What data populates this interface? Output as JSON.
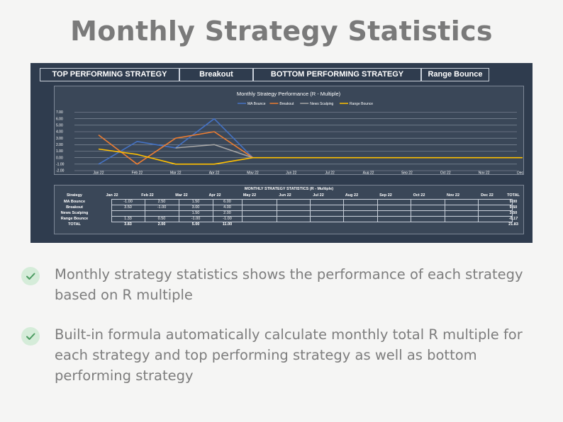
{
  "page_title": "Monthly Strategy Statistics",
  "topbar": {
    "top_label": "TOP PERFORMING STRATEGY",
    "top_value": "Breakout",
    "bottom_label": "BOTTOM PERFORMING STRATEGY",
    "bottom_value": "Range Bounce"
  },
  "bullets": [
    {
      "text": "Monthly strategy statistics shows the performance of each strategy based on R multiple"
    },
    {
      "text": "Built-in formula automatically calculate monthly total R multiple for each strategy and top performing strategy as well as bottom performing strategy"
    }
  ],
  "table": {
    "title": "MONTHLY STRATEGY STATISTICS (R - Multiple)",
    "headers": [
      "Strategy",
      "Jan 22",
      "Feb 22",
      "Mar 22",
      "Apr 22",
      "May 22",
      "Jun 22",
      "Jul 22",
      "Aug 22",
      "Sep 22",
      "Oct 22",
      "Nov 22",
      "Dec 22",
      "TOTAL"
    ],
    "rows": [
      {
        "name": "MA Bounce",
        "cells": [
          "-1.00",
          "2.50",
          "1.50",
          "6.00",
          "",
          "",
          "",
          "",
          "",
          "",
          "",
          ""
        ],
        "total": "9.00"
      },
      {
        "name": "Breakout",
        "cells": [
          "3.50",
          "-1.00",
          "3.00",
          "4.00",
          "",
          "",
          "",
          "",
          "",
          "",
          "",
          ""
        ],
        "total": "9.50"
      },
      {
        "name": "News Scalping",
        "cells": [
          "",
          "",
          "1.50",
          "2.00",
          "",
          "",
          "",
          "",
          "",
          "",
          "",
          ""
        ],
        "total": "3.50"
      },
      {
        "name": "Range Bounce",
        "cells": [
          "1.33",
          "0.50",
          "-1.00",
          "-1.00",
          "",
          "",
          "",
          "",
          "",
          "",
          "",
          ""
        ],
        "total": "-0.17"
      }
    ],
    "total_row": {
      "name": "TOTAL",
      "cells": [
        "3.83",
        "2.00",
        "5.00",
        "11.00",
        "",
        "",
        "",
        "",
        "",
        "",
        "",
        ""
      ],
      "total": "21.83"
    }
  },
  "colors": {
    "ma_bounce": "#4472c4",
    "breakout": "#ed7d31",
    "news_scalping": "#a5a5a5",
    "range_bounce": "#ffc000"
  },
  "chart_data": {
    "type": "line",
    "title": "Monthly Strategy Performance (R - Multiple)",
    "categories": [
      "Jan 22",
      "Feb 22",
      "Mar 22",
      "Apr 22",
      "May 22",
      "Jun 22",
      "Jul 22",
      "Aug 22",
      "Sep 22",
      "Oct 22",
      "Nov 22",
      "Dec 22"
    ],
    "yticks": [
      "7.00",
      "6.00",
      "5.00",
      "4.00",
      "3.00",
      "2.00",
      "1.00",
      "0.00",
      "-1.00",
      "-2.00"
    ],
    "ylim": [
      -2,
      7
    ],
    "legend_position": "top",
    "grid": true,
    "series": [
      {
        "name": "MA Bounce",
        "color": "#4472c4",
        "values": [
          -1,
          2.5,
          1.5,
          6,
          0,
          null,
          null,
          null,
          null,
          null,
          null,
          null
        ]
      },
      {
        "name": "Breakout",
        "color": "#ed7d31",
        "values": [
          3.5,
          -1,
          3,
          4,
          0,
          null,
          null,
          null,
          null,
          null,
          null,
          null
        ]
      },
      {
        "name": "News Scalping",
        "color": "#a5a5a5",
        "values": [
          null,
          null,
          1.5,
          2,
          0,
          null,
          null,
          null,
          null,
          null,
          null,
          null
        ]
      },
      {
        "name": "Range Bounce",
        "color": "#ffc000",
        "values": [
          1.33,
          0.5,
          -1,
          -1,
          0,
          0,
          0,
          0,
          0,
          0,
          0,
          0
        ]
      }
    ]
  }
}
